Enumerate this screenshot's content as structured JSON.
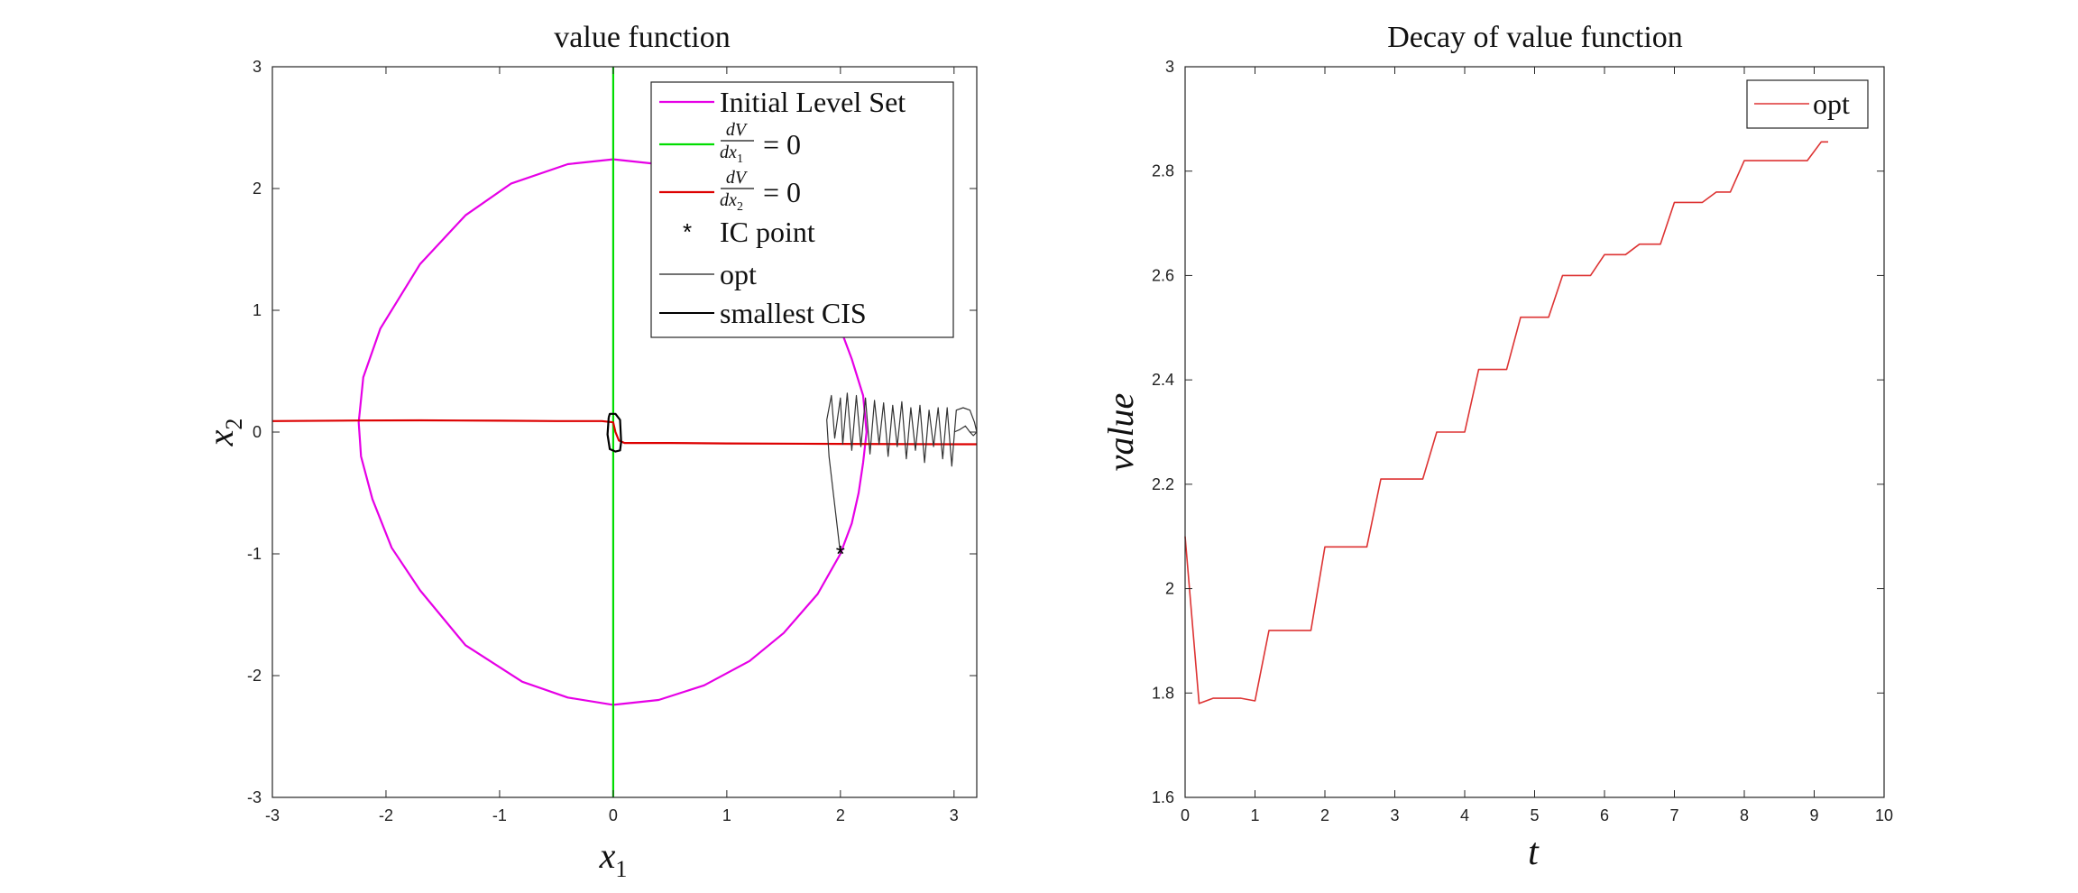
{
  "chart_data": [
    {
      "type": "line",
      "title": "value function",
      "xlabel": "x",
      "xlabel_sub": "1",
      "ylabel": "x",
      "ylabel_sub": "2",
      "xlim": [
        -3,
        3.2
      ],
      "ylim": [
        -3,
        3
      ],
      "xticks": [
        -3,
        -2,
        -1,
        0,
        1,
        2,
        3
      ],
      "yticks": [
        -3,
        -2,
        -1,
        0,
        1,
        2,
        3
      ],
      "xtick_labels": [
        "-3",
        "-2",
        "-1",
        "0",
        "1",
        "2",
        "3"
      ],
      "ytick_labels": [
        "-3",
        "-2",
        "-1",
        "0",
        "1",
        "2",
        "3"
      ],
      "legend_position": "top-right",
      "legend": [
        {
          "label": "Initial Level Set",
          "color": "#e600e6",
          "marker": "line"
        },
        {
          "label": "dV/dx1 = 0",
          "num": "dV",
          "den": "dx",
          "den_sub": "1",
          "rhs": "= 0",
          "color": "#00dd00",
          "marker": "line"
        },
        {
          "label": "dV/dx2 = 0",
          "num": "dV",
          "den": "dx",
          "den_sub": "2",
          "rhs": "= 0",
          "color": "#dd0000",
          "marker": "line"
        },
        {
          "label": "IC point",
          "color": "#000000",
          "marker": "*"
        },
        {
          "label": "opt",
          "color": "#444444",
          "marker": "line"
        },
        {
          "label": "smallest CIS",
          "color": "#000000",
          "marker": "line"
        }
      ],
      "series": [
        {
          "name": "Initial Level Set",
          "color": "#e600e6",
          "x": [
            0,
            0.4,
            0.8,
            1.2,
            1.5,
            1.8,
            2.0,
            2.1,
            2.16,
            2.2,
            2.23,
            2.2,
            2.1,
            2.0,
            1.8,
            1.5,
            1.2,
            0.8,
            0.4,
            0,
            -0.4,
            -0.9,
            -1.3,
            -1.7,
            -2.05,
            -2.2,
            -2.24,
            -2.22,
            -2.12,
            -1.95,
            -1.7,
            -1.3,
            -0.8,
            -0.4,
            0
          ],
          "y": [
            -2.24,
            -2.2,
            -2.08,
            -1.88,
            -1.65,
            -1.33,
            -1.0,
            -0.75,
            -0.5,
            -0.25,
            0,
            0.3,
            0.6,
            0.85,
            1.17,
            1.6,
            1.86,
            2.08,
            2.2,
            2.24,
            2.2,
            2.04,
            1.78,
            1.38,
            0.85,
            0.45,
            0.08,
            -0.2,
            -0.55,
            -0.95,
            -1.3,
            -1.75,
            -2.05,
            -2.18,
            -2.24
          ]
        },
        {
          "name": "dV/dx1 = 0",
          "color": "#00dd00",
          "x": [
            0,
            0
          ],
          "y": [
            -3,
            3
          ]
        },
        {
          "name": "dV/dx2 = 0",
          "color": "#dd0000",
          "x": [
            -3,
            -2.24,
            -1.7,
            -1,
            -0.5,
            -0.1,
            0,
            0.02,
            0.05,
            0.1,
            0.5,
            1,
            2,
            3,
            3.2
          ],
          "y": [
            0.09,
            0.095,
            0.096,
            0.093,
            0.09,
            0.09,
            0.08,
            0.0,
            -0.07,
            -0.09,
            -0.09,
            -0.093,
            -0.097,
            -0.1,
            -0.1
          ]
        },
        {
          "name": "opt",
          "color": "#333333",
          "x": [
            2.0,
            1.95,
            1.9,
            1.88,
            1.92,
            1.95,
            2.0,
            2.02,
            2.06,
            2.1,
            2.14,
            2.18,
            2.22,
            2.26,
            2.3,
            2.34,
            2.38,
            2.42,
            2.46,
            2.5,
            2.54,
            2.58,
            2.62,
            2.66,
            2.7,
            2.74,
            2.78,
            2.82,
            2.86,
            2.9,
            2.94,
            2.98,
            3.02,
            3.08,
            3.14,
            3.18,
            3.2,
            3.17,
            3.14,
            3.1,
            3.05,
            3.0
          ],
          "y": [
            -1.0,
            -0.6,
            -0.2,
            0.1,
            0.3,
            -0.05,
            0.28,
            -0.1,
            0.32,
            -0.15,
            0.3,
            -0.12,
            0.28,
            -0.18,
            0.26,
            -0.1,
            0.24,
            -0.2,
            0.22,
            -0.12,
            0.25,
            -0.22,
            0.2,
            -0.15,
            0.22,
            -0.25,
            0.18,
            -0.12,
            0.2,
            -0.22,
            0.2,
            -0.28,
            0.18,
            0.2,
            0.18,
            0.08,
            0.0,
            -0.03,
            0.0,
            0.05,
            0.02,
            0.0
          ]
        },
        {
          "name": "smallest CIS",
          "color": "#000000",
          "x": [
            -0.04,
            -0.03,
            0.02,
            0.06,
            0.07,
            0.06,
            0.02,
            -0.03,
            -0.05,
            -0.04
          ],
          "y": [
            0.12,
            0.15,
            0.15,
            0.1,
            -0.08,
            -0.15,
            -0.16,
            -0.14,
            -0.02,
            0.12
          ]
        }
      ],
      "ic_point": {
        "x": 2.0,
        "y": -1.0
      }
    },
    {
      "type": "line",
      "title": "Decay of value function",
      "xlabel": "t",
      "ylabel": "value",
      "xlim": [
        0,
        10
      ],
      "ylim": [
        1.6,
        3
      ],
      "xticks": [
        0,
        1,
        2,
        3,
        4,
        5,
        6,
        7,
        8,
        9,
        10
      ],
      "yticks": [
        1.6,
        1.8,
        2,
        2.2,
        2.4,
        2.6,
        2.8,
        3
      ],
      "xtick_labels": [
        "0",
        "1",
        "2",
        "3",
        "4",
        "5",
        "6",
        "7",
        "8",
        "9",
        "10"
      ],
      "ytick_labels": [
        "1.6",
        "1.8",
        "2",
        "2.2",
        "2.4",
        "2.6",
        "2.8",
        "3"
      ],
      "legend_position": "top-right",
      "legend": [
        {
          "label": "opt",
          "color": "#dd3333",
          "marker": "line"
        }
      ],
      "series": [
        {
          "name": "opt",
          "color": "#dd3333",
          "x": [
            0,
            0.2,
            0.4,
            0.8,
            1.0,
            1.2,
            1.8,
            2.0,
            2.6,
            2.8,
            3.4,
            3.6,
            4.0,
            4.2,
            4.6,
            4.8,
            5.2,
            5.4,
            5.8,
            6.0,
            6.3,
            6.5,
            6.8,
            7.0,
            7.4,
            7.6,
            7.8,
            8.0,
            8.2,
            8.4,
            8.9,
            9.1,
            9.2
          ],
          "y": [
            2.1,
            1.78,
            1.79,
            1.79,
            1.785,
            1.92,
            1.92,
            2.08,
            2.08,
            2.21,
            2.21,
            2.3,
            2.3,
            2.42,
            2.42,
            2.52,
            2.52,
            2.6,
            2.6,
            2.64,
            2.64,
            2.66,
            2.66,
            2.74,
            2.74,
            2.76,
            2.76,
            2.82,
            2.82,
            2.82,
            2.82,
            2.856,
            2.856
          ]
        }
      ]
    }
  ]
}
